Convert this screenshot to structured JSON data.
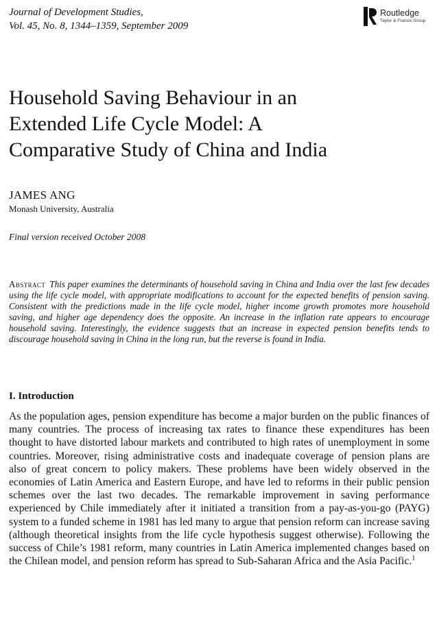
{
  "header": {
    "journal_line1": "Journal of Development Studies,",
    "journal_line2": "Vol. 45, No. 8, 1344–1359, September 2009",
    "publisher": "Routledge",
    "publisher_sub": "Taylor & Francis Group",
    "publisher_icon": "routledge-logo-icon"
  },
  "article": {
    "title_line1": "Household Saving Behaviour in an",
    "title_line2": "Extended Life Cycle Model: A",
    "title_line3": "Comparative Study of China and India",
    "author": "JAMES ANG",
    "affiliation": "Monash University, Australia",
    "received": "Final version received October 2008"
  },
  "abstract": {
    "label": "Abstract",
    "text": "This paper examines the determinants of household saving in China and India over the last few decades using the life cycle model, with appropriate modifications to account for the expected benefits of pension saving. Consistent with the predictions made in the life cycle model, higher income growth promotes more household saving, and higher age dependency does the opposite. An increase in the inflation rate appears to encourage household saving. Interestingly, the evidence suggests that an increase in expected pension benefits tends to discourage household saving in China in the long run, but the reverse is found in India."
  },
  "section": {
    "heading": "I. Introduction",
    "paragraph": "As the population ages, pension expenditure has become a major burden on the public finances of many countries. The process of increasing tax rates to finance these expenditures has been thought to have distorted labour markets and contributed to high rates of unemployment in some countries. Moreover, rising administrative costs and inadequate coverage of pension plans are also of great concern to policy makers. These problems have been widely observed in the economies of Latin America and Eastern Europe, and have led to reforms in their public pension schemes over the last two decades. The remarkable improvement in saving performance experienced by Chile immediately after it initiated a transition from a pay-as-you-go (PAYG) system to a funded scheme in 1981 has led many to argue that pension reform can increase saving (although theoretical insights from the life cycle hypothesis suggest otherwise). Following the success of Chile’s 1981 reform, many countries in Latin America implemented changes based on the Chilean model, and pension reform has spread to Sub-Saharan Africa and the Asia Pacific.",
    "footnote_ref": "1"
  }
}
